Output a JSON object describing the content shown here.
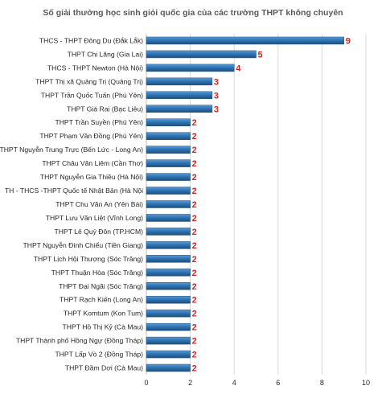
{
  "chart_data": {
    "type": "bar",
    "orientation": "horizontal",
    "title": "Số giải thưởng học sinh giỏi quốc gia của các trường THPT không chuyên",
    "xlabel": "",
    "ylabel": "",
    "xlim": [
      0,
      10
    ],
    "xticks": [
      "0",
      "2",
      "4",
      "6",
      "8",
      "10"
    ],
    "grid": true,
    "legend": "none",
    "bar_color": "#2e75b6",
    "label_color": "#e02020",
    "categories": [
      "THCS - THPT Đông Du (Đắk Lắk)",
      "THPT Chi Lăng (Gia Lai)",
      "THCS - THPT Newton (Hà Nội)",
      "THPT Thị xã Quảng Trị (Quảng Trị)",
      "THPT Trần Quốc Tuấn (Phú Yên)",
      "THPT Giá Rai (Bạc Liêu)",
      "THPT Trần Suyền (Phú Yên)",
      "THPT Phạm Văn Đồng (Phú Yên)",
      "THPT Nguyễn Trung Trực (Bến Lức - Long An)",
      "THPT Châu Văn Liêm (Cần Thơ)",
      "THPT Nguyễn Gia Thiều (Hà Nội)",
      "TH - THCS -THPT Quốc tế Nhật Bản (Hà Nội",
      "THPT Chu Văn An (Yên Bái)",
      "THPT Lưu Văn Liệt (Vĩnh Long)",
      "THPT Lê Quý Đôn (TP.HCM)",
      "THPT Nguyễn Đình Chiểu (Tiền Giang)",
      "THPT Lịch Hội Thượng (Sóc Trăng)",
      "THPT Thuận Hòa (Sóc Trăng)",
      "THPT Đại Ngãi (Sóc Trăng)",
      "THPT Rạch Kiến (Long An)",
      "THPT Komtum (Kon Tum)",
      "THPT Hồ Thị Kỷ (Cà Mau)",
      "THPT Thành phố Hồng Ngự (Đồng Tháp)",
      "THPT Lấp Vò 2 (Đồng Tháp)",
      "THPT Đầm Dơi (Cà Mau)"
    ],
    "values": [
      9,
      5,
      4,
      3,
      3,
      3,
      2,
      2,
      2,
      2,
      2,
      2,
      2,
      2,
      2,
      2,
      2,
      2,
      2,
      2,
      2,
      2,
      2,
      2,
      2
    ]
  }
}
